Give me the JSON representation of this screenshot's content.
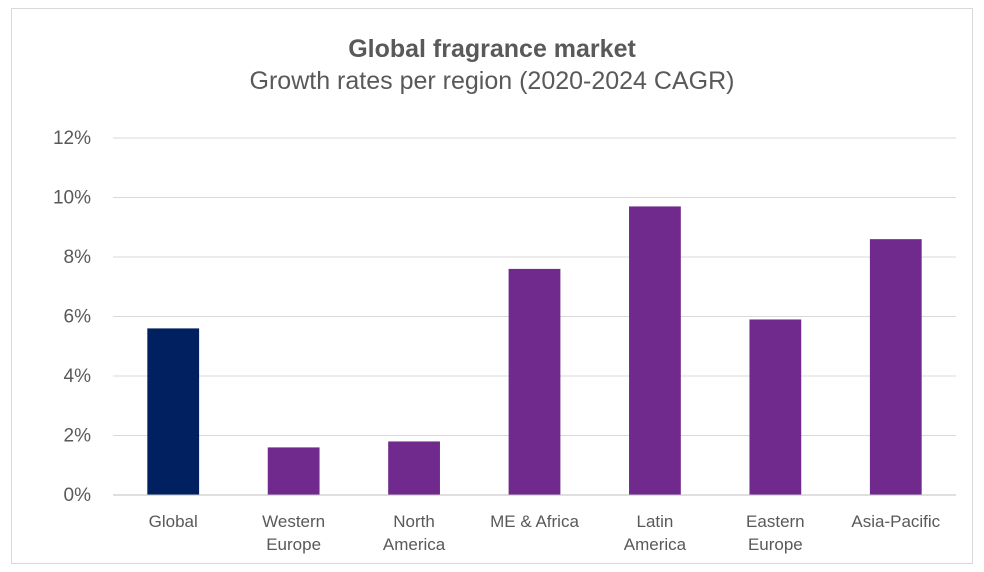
{
  "chart_data": {
    "type": "bar",
    "title": "Global fragrance market",
    "subtitle": "Growth rates per region (2020-2024 CAGR)",
    "categories": [
      "Global",
      "Western Europe",
      "North America",
      "ME & Africa",
      "Latin America",
      "Eastern Europe",
      "Asia-Pacific"
    ],
    "category_lines": [
      [
        "Global"
      ],
      [
        "Western",
        "Europe"
      ],
      [
        "North",
        "America"
      ],
      [
        "ME & Africa"
      ],
      [
        "Latin",
        "America"
      ],
      [
        "Eastern",
        "Europe"
      ],
      [
        "Asia-Pacific"
      ]
    ],
    "values": [
      5.6,
      1.6,
      1.8,
      7.6,
      9.7,
      5.9,
      8.6
    ],
    "unit": "%",
    "ylim": [
      0,
      12
    ],
    "yticks": [
      0,
      2,
      4,
      6,
      8,
      10,
      12
    ],
    "ytick_labels": [
      "0%",
      "2%",
      "4%",
      "6%",
      "8%",
      "10%",
      "12%"
    ],
    "xlabel": "",
    "ylabel": "",
    "grid": true,
    "legend": "none",
    "colors": {
      "highlight": "#002060",
      "default": "#70298c",
      "grid": "#d9d9d9",
      "axis": "#bfbfbf",
      "text": "#595959"
    }
  }
}
